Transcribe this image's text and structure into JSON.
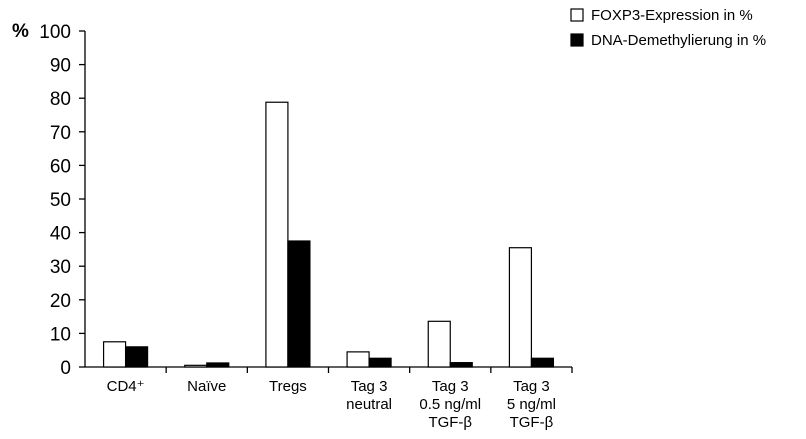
{
  "chart_data": {
    "type": "bar",
    "ylabel": "%",
    "ylim": [
      0,
      100
    ],
    "yticks": [
      0,
      10,
      20,
      30,
      40,
      50,
      60,
      70,
      80,
      90,
      100
    ],
    "grid": false,
    "legend_position": "top-right",
    "categories": [
      [
        "CD4⁺"
      ],
      [
        "Naïve"
      ],
      [
        "Tregs"
      ],
      [
        "Tag 3",
        "neutral"
      ],
      [
        "Tag 3",
        "0.5 ng/ml",
        "TGF-β"
      ],
      [
        "Tag 3",
        "5 ng/ml",
        "TGF-β"
      ]
    ],
    "series": [
      {
        "name": "FOXP3-Expression in %",
        "fill": "#ffffff",
        "values": [
          7.5,
          0.5,
          78.8,
          4.5,
          13.6,
          35.5
        ]
      },
      {
        "name": "DNA-Demethylierung in %",
        "fill": "#000000",
        "values": [
          6.0,
          1.2,
          37.5,
          2.6,
          1.3,
          2.6
        ]
      }
    ]
  }
}
